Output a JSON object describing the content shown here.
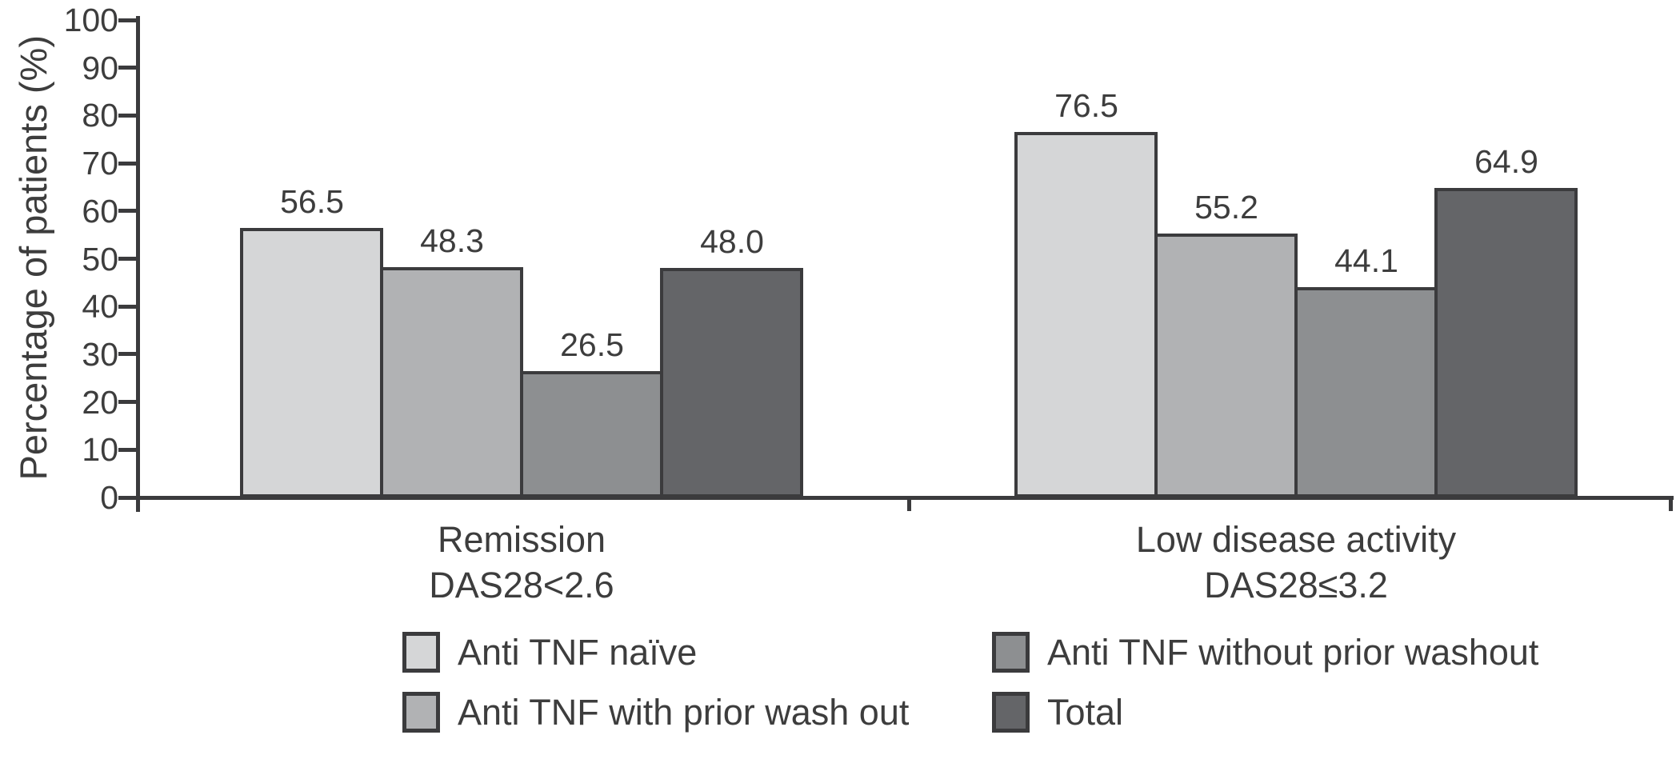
{
  "chart_data": {
    "type": "bar",
    "title": "",
    "ylabel": "Percentage of patients (%)",
    "xlabel": "",
    "ylim": [
      0,
      100
    ],
    "ytick_step": 10,
    "ytick_labels": [
      "0",
      "10",
      "20",
      "30",
      "40",
      "50",
      "60",
      "70",
      "80",
      "90",
      "100"
    ],
    "grid": false,
    "legend_position": "bottom",
    "category_lines": [
      [
        "Remission",
        "DAS28<2.6"
      ],
      [
        "Low disease activity",
        "DAS28≤3.2"
      ]
    ],
    "series": [
      {
        "name": "Anti TNF naïve",
        "color": "#d5d6d7",
        "values": [
          56.5,
          76.5
        ],
        "labels": [
          "56.5",
          "76.5"
        ]
      },
      {
        "name": "Anti TNF with prior wash out",
        "color": "#b1b2b4",
        "values": [
          48.3,
          55.2
        ],
        "labels": [
          "48.3",
          "55.2"
        ]
      },
      {
        "name": "Anti TNF without prior washout",
        "color": "#8d8f91",
        "values": [
          26.5,
          44.1
        ],
        "labels": [
          "26.5",
          "44.1"
        ]
      },
      {
        "name": "Total",
        "color": "#646568",
        "values": [
          48.0,
          64.9
        ],
        "labels": [
          "48.0",
          "64.9"
        ]
      }
    ],
    "legend_rows": [
      [
        0,
        2
      ],
      [
        1,
        3
      ]
    ],
    "bar_outline_color": "#3b3b3d",
    "axis_color": "#3b3b3d",
    "text_color": "#3d3d3d"
  }
}
